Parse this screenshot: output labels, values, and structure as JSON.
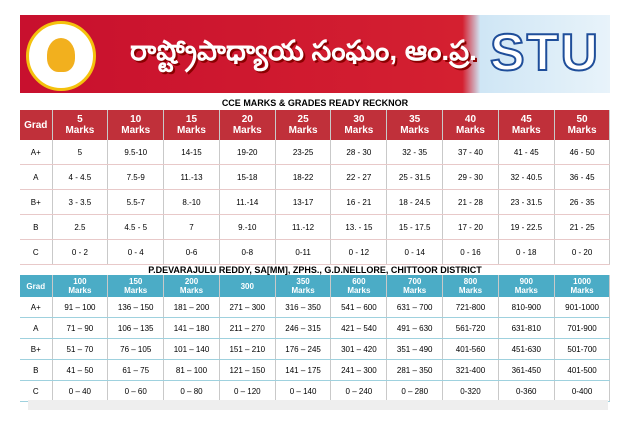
{
  "header": {
    "title": "రాష్ట్రోపాధ్యాయ సంఘం, ఆం.ప్ర.",
    "badge": "STU"
  },
  "title": "CCE MARKS & GRADES READY RECKNOR",
  "table1": {
    "columns": [
      "Grad",
      "5 Marks",
      "10 Marks",
      "15 Marks",
      "20 Marks",
      "25 Marks",
      "30 Marks",
      "35 Marks",
      "40 Marks",
      "45 Marks",
      "50 Marks"
    ],
    "rows": [
      [
        "A+",
        "5",
        "9.5-10",
        "14-15",
        "19-20",
        "23-25",
        "28 - 30",
        "32 - 35",
        "37 - 40",
        "41 - 45",
        "46 - 50"
      ],
      [
        "A",
        "4 - 4.5",
        "7.5-9",
        "11.-13",
        "15-18",
        "18-22",
        "22 - 27",
        "25 - 31.5",
        "29 - 30",
        "32 - 40.5",
        "36 - 45"
      ],
      [
        "B+",
        "3 - 3.5",
        "5.5-7",
        "8.-10",
        "11.-14",
        "13-17",
        "16 - 21",
        "18 - 24.5",
        "21 - 28",
        "23 - 31.5",
        "26 - 35"
      ],
      [
        "B",
        "2.5",
        "4.5 - 5",
        "7",
        "9.-10",
        "11.-12",
        "13. - 15",
        "15 - 17.5",
        "17 - 20",
        "19 - 22.5",
        "21 - 25"
      ],
      [
        "C",
        "0 - 2",
        "0 - 4",
        "0-6",
        "0-8",
        "0-11",
        "0 - 12",
        "0 - 14",
        "0 - 16",
        "0 - 18",
        "0 - 20"
      ]
    ]
  },
  "subtitle": "P.DEVARAJULU REDDY, SA[MM], ZPHS., G.D.NELLORE, CHITTOOR DISTRICT",
  "table2": {
    "columns": [
      "Grad",
      "100 Marks",
      "150 Marks",
      "200 Marks",
      "300",
      "350 Marks",
      "600 Marks",
      "700 Marks",
      "800 Marks",
      "900 Marks",
      "1000 Marks"
    ],
    "rows": [
      [
        "A+",
        "91 – 100",
        "136 – 150",
        "181 – 200",
        "271 – 300",
        "316 – 350",
        "541 – 600",
        "631 – 700",
        "721-800",
        "810-900",
        "901-1000"
      ],
      [
        "A",
        "71 – 90",
        "106 – 135",
        "141 – 180",
        "211 – 270",
        "246 – 315",
        "421 – 540",
        "491 – 630",
        "561-720",
        "631-810",
        "701-900"
      ],
      [
        "B+",
        "51 – 70",
        "76 – 105",
        "101 – 140",
        "151 – 210",
        "176 – 245",
        "301 – 420",
        "351 – 490",
        "401-560",
        "451-630",
        "501-700"
      ],
      [
        "B",
        "41 – 50",
        "61 – 75",
        "81 – 100",
        "121 – 150",
        "141 – 175",
        "241 – 300",
        "281 – 350",
        "321-400",
        "361-450",
        "401-500"
      ],
      [
        "C",
        "0 – 40",
        "0 – 60",
        "0 – 80",
        "0 – 120",
        "0 – 140",
        "0 – 240",
        "0 – 280",
        "0-320",
        "0-360",
        "0-400"
      ]
    ]
  }
}
